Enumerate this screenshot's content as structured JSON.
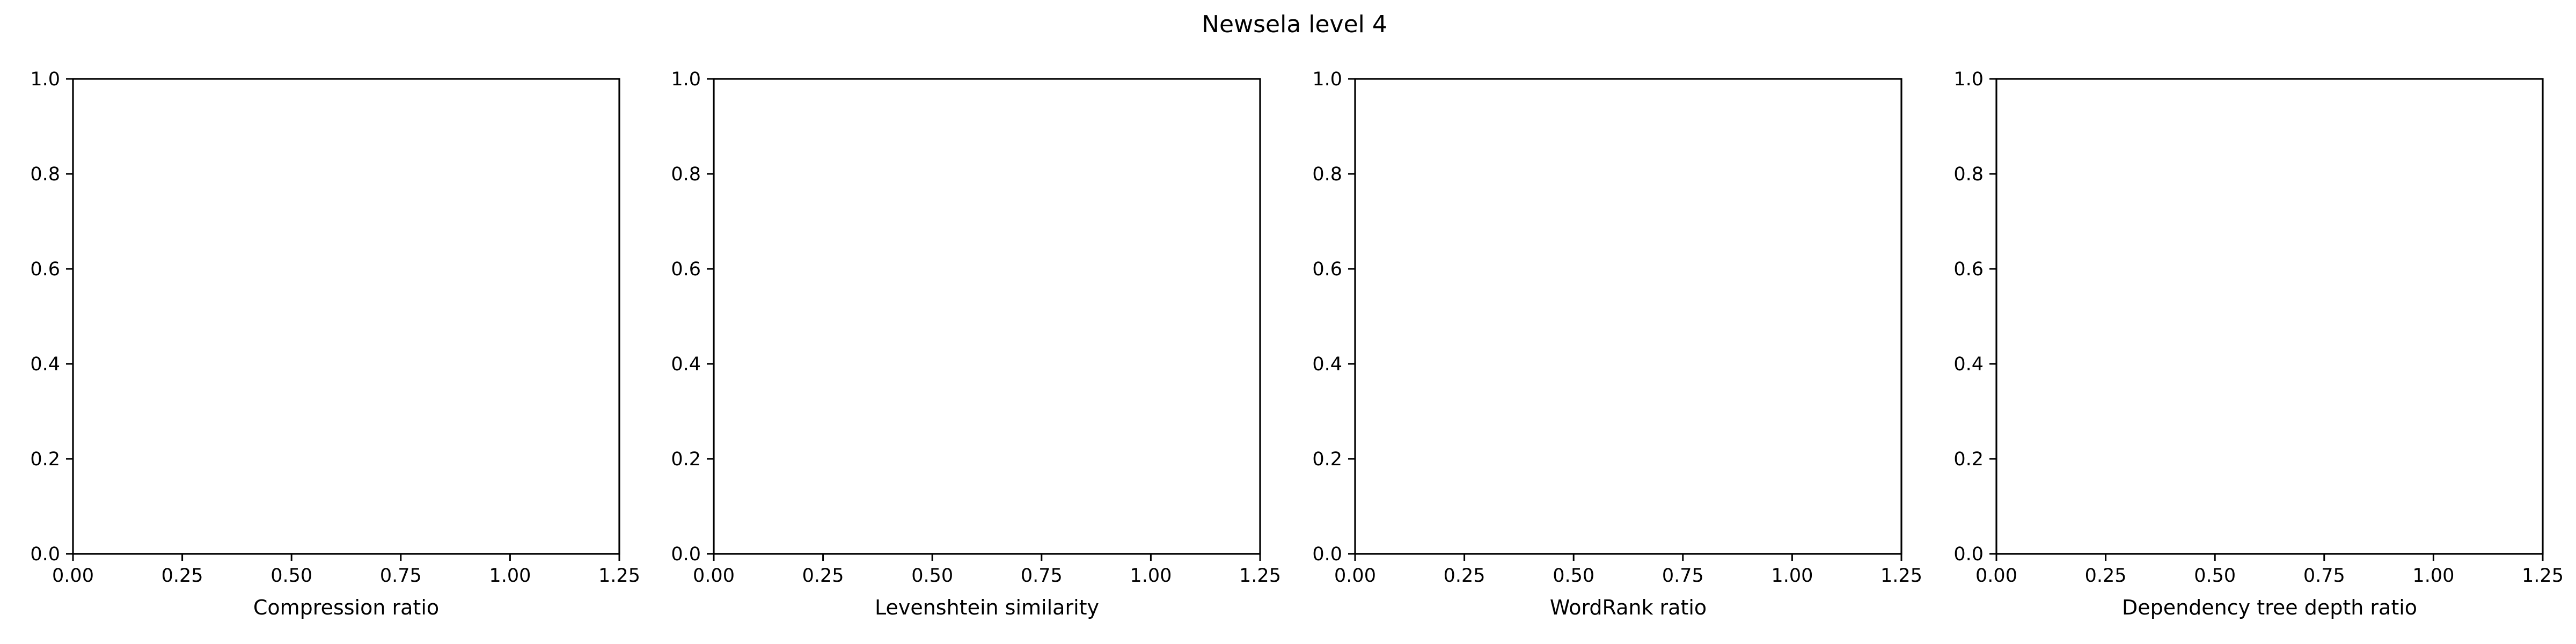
{
  "figure": {
    "title": "Newsela level 4"
  },
  "chart_data": [
    {
      "type": "scatter",
      "title": "",
      "xlabel": "Compression ratio",
      "ylabel": "",
      "xlim": [
        0.0,
        1.25
      ],
      "ylim": [
        0.0,
        1.0
      ],
      "xticks": [
        "0.00",
        "0.25",
        "0.50",
        "0.75",
        "1.00",
        "1.25"
      ],
      "yticks": [
        "0.0",
        "0.2",
        "0.4",
        "0.6",
        "0.8",
        "1.0"
      ],
      "grid": false,
      "series": []
    },
    {
      "type": "scatter",
      "title": "",
      "xlabel": "Levenshtein similarity",
      "ylabel": "",
      "xlim": [
        0.0,
        1.25
      ],
      "ylim": [
        0.0,
        1.0
      ],
      "xticks": [
        "0.00",
        "0.25",
        "0.50",
        "0.75",
        "1.00",
        "1.25"
      ],
      "yticks": [
        "0.0",
        "0.2",
        "0.4",
        "0.6",
        "0.8",
        "1.0"
      ],
      "grid": false,
      "series": []
    },
    {
      "type": "scatter",
      "title": "",
      "xlabel": "WordRank ratio",
      "ylabel": "",
      "xlim": [
        0.0,
        1.25
      ],
      "ylim": [
        0.0,
        1.0
      ],
      "xticks": [
        "0.00",
        "0.25",
        "0.50",
        "0.75",
        "1.00",
        "1.25"
      ],
      "yticks": [
        "0.0",
        "0.2",
        "0.4",
        "0.6",
        "0.8",
        "1.0"
      ],
      "grid": false,
      "series": []
    },
    {
      "type": "scatter",
      "title": "",
      "xlabel": "Dependency tree depth ratio",
      "ylabel": "",
      "xlim": [
        0.0,
        1.25
      ],
      "ylim": [
        0.0,
        1.0
      ],
      "xticks": [
        "0.00",
        "0.25",
        "0.50",
        "0.75",
        "1.00",
        "1.25"
      ],
      "yticks": [
        "0.0",
        "0.2",
        "0.4",
        "0.6",
        "0.8",
        "1.0"
      ],
      "grid": false,
      "series": []
    }
  ]
}
